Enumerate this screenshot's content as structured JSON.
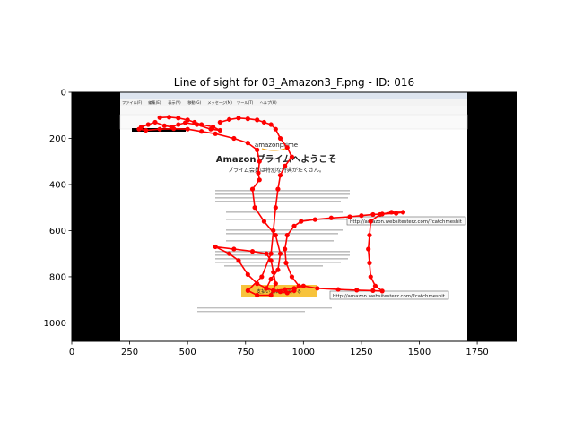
{
  "chart_data": {
    "type": "scatter",
    "title": "Line of sight for 03_Amazon3_F.png - ID: 016",
    "xlabel": "",
    "ylabel": "",
    "xlim": [
      0,
      1920
    ],
    "ylim": [
      1080,
      0
    ],
    "x_ticks": [
      0,
      250,
      500,
      750,
      1000,
      1250,
      1500,
      1750
    ],
    "y_ticks": [
      0,
      200,
      400,
      600,
      800,
      1000
    ],
    "grid": false,
    "series": [
      {
        "color": "#ff0000",
        "points": [
          [
            380,
            110
          ],
          [
            420,
            108
          ],
          [
            460,
            112
          ],
          [
            500,
            120
          ],
          [
            530,
            130
          ],
          [
            560,
            140
          ],
          [
            610,
            150
          ],
          [
            640,
            165
          ],
          [
            600,
            160
          ],
          [
            540,
            140
          ],
          [
            490,
            132
          ],
          [
            460,
            140
          ],
          [
            430,
            150
          ],
          [
            400,
            145
          ],
          [
            360,
            130
          ],
          [
            330,
            140
          ],
          [
            300,
            150
          ],
          [
            290,
            160
          ],
          [
            320,
            165
          ],
          [
            380,
            160
          ],
          [
            440,
            158
          ],
          [
            500,
            160
          ],
          [
            560,
            170
          ],
          [
            620,
            180
          ],
          [
            700,
            200
          ],
          [
            760,
            220
          ],
          [
            800,
            250
          ],
          [
            810,
            300
          ],
          [
            805,
            350
          ],
          [
            810,
            380
          ],
          [
            780,
            420
          ],
          [
            790,
            500
          ],
          [
            830,
            560
          ],
          [
            880,
            620
          ],
          [
            900,
            700
          ],
          [
            890,
            770
          ],
          [
            860,
            810
          ],
          [
            840,
            850
          ],
          [
            870,
            860
          ],
          [
            920,
            855
          ],
          [
            960,
            850
          ],
          [
            1000,
            840
          ],
          [
            1060,
            850
          ],
          [
            1150,
            855
          ],
          [
            1230,
            858
          ],
          [
            1300,
            860
          ],
          [
            1340,
            862
          ],
          [
            1310,
            840
          ],
          [
            1290,
            800
          ],
          [
            1285,
            740
          ],
          [
            1280,
            680
          ],
          [
            1285,
            620
          ],
          [
            1290,
            560
          ],
          [
            1330,
            530
          ],
          [
            1380,
            520
          ],
          [
            1430,
            520
          ],
          [
            1400,
            525
          ],
          [
            1340,
            528
          ],
          [
            1300,
            530
          ],
          [
            1250,
            535
          ],
          [
            1200,
            540
          ],
          [
            1120,
            545
          ],
          [
            1050,
            552
          ],
          [
            990,
            560
          ],
          [
            960,
            580
          ],
          [
            930,
            620
          ],
          [
            920,
            680
          ],
          [
            925,
            740
          ],
          [
            950,
            800
          ],
          [
            980,
            840
          ],
          [
            960,
            860
          ],
          [
            930,
            870
          ],
          [
            900,
            865
          ],
          [
            870,
            860
          ],
          [
            840,
            850
          ],
          [
            800,
            830
          ],
          [
            760,
            790
          ],
          [
            720,
            730
          ],
          [
            680,
            700
          ],
          [
            620,
            670
          ],
          [
            700,
            680
          ],
          [
            780,
            690
          ],
          [
            840,
            700
          ],
          [
            860,
            730
          ],
          [
            870,
            780
          ],
          [
            880,
            830
          ],
          [
            860,
            880
          ],
          [
            800,
            880
          ],
          [
            760,
            860
          ],
          [
            820,
            800
          ],
          [
            860,
            700
          ],
          [
            870,
            600
          ],
          [
            880,
            500
          ],
          [
            890,
            420
          ],
          [
            900,
            360
          ],
          [
            920,
            320
          ],
          [
            950,
            280
          ],
          [
            930,
            240
          ],
          [
            900,
            200
          ],
          [
            880,
            160
          ],
          [
            860,
            140
          ],
          [
            830,
            130
          ],
          [
            800,
            120
          ],
          [
            760,
            115
          ],
          [
            720,
            112
          ],
          [
            680,
            118
          ],
          [
            640,
            130
          ]
        ]
      }
    ]
  },
  "screenshot": {
    "menu_items": [
      "ファイル(F)",
      "編集(E)",
      "表示(V)",
      "移動(G)",
      "メッセージ(M)",
      "ツール(T)",
      "ヘルプ(H)"
    ],
    "brand": "amazonprime",
    "headline": "Amazonプライムへようこそ",
    "subheadline": "プライム会員は特別な特典がたくさん。",
    "link_1": "http://amazon.websitesterz.com/?catchmeshit",
    "link_2": "http://amazon.websitesterz.com/?catchmeshit",
    "button": "支払い方法を更新する"
  }
}
